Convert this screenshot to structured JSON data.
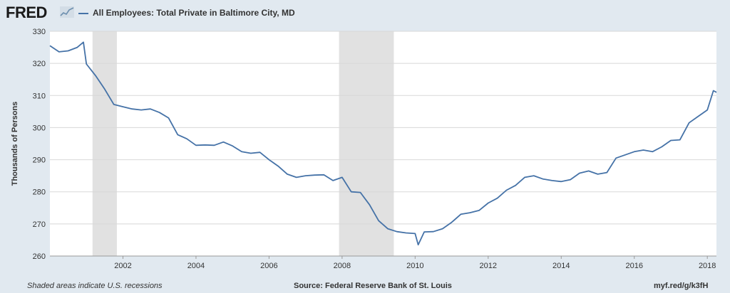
{
  "header": {
    "logo": "FRED",
    "logo_icon": "line-chart-icon",
    "series_title": "All Employees: Total Private in Baltimore City, MD"
  },
  "footer": {
    "note": "Shaded areas indicate U.S. recessions",
    "source": "Source: Federal Reserve Bank of St. Louis",
    "link": "myf.red/g/k3fH"
  },
  "colors": {
    "line": "#4572a7",
    "recession": "#e1e1e1",
    "background": "#e1e9f0",
    "plot": "#ffffff"
  },
  "chart_data": {
    "type": "line",
    "title": "All Employees: Total Private in Baltimore City, MD",
    "xlabel": "",
    "ylabel": "Thousands of Persons",
    "ylim": [
      260,
      330
    ],
    "xlim": [
      "2000-01",
      "2018-04"
    ],
    "yticks": [
      260,
      270,
      280,
      290,
      300,
      310,
      320,
      330
    ],
    "xticks": [
      "2002",
      "2004",
      "2006",
      "2008",
      "2010",
      "2012",
      "2014",
      "2016",
      "2018"
    ],
    "grid": "horizontal",
    "recessions": [
      [
        "2001-03",
        "2001-11"
      ],
      [
        "2007-12",
        "2009-06"
      ]
    ],
    "series": [
      {
        "x": [
          "2000-01",
          "2000-04",
          "2000-07",
          "2000-10",
          "2000-12",
          "2001-01",
          "2001-04",
          "2001-07",
          "2001-10",
          "2002-01",
          "2002-04",
          "2002-07",
          "2002-10",
          "2003-01",
          "2003-04",
          "2003-07",
          "2003-10",
          "2004-01",
          "2004-04",
          "2004-07",
          "2004-10",
          "2005-01",
          "2005-04",
          "2005-07",
          "2005-10",
          "2006-01",
          "2006-04",
          "2006-07",
          "2006-10",
          "2007-01",
          "2007-04",
          "2007-07",
          "2007-10",
          "2008-01",
          "2008-04",
          "2008-07",
          "2008-10",
          "2009-01",
          "2009-04",
          "2009-07",
          "2009-10",
          "2010-01",
          "2010-02",
          "2010-04",
          "2010-07",
          "2010-10",
          "2011-01",
          "2011-04",
          "2011-07",
          "2011-10",
          "2012-01",
          "2012-04",
          "2012-07",
          "2012-10",
          "2013-01",
          "2013-04",
          "2013-07",
          "2013-10",
          "2014-01",
          "2014-04",
          "2014-07",
          "2014-10",
          "2015-01",
          "2015-04",
          "2015-07",
          "2015-10",
          "2016-01",
          "2016-04",
          "2016-07",
          "2016-10",
          "2017-01",
          "2017-04",
          "2017-07",
          "2017-10",
          "2018-01",
          "2018-03",
          "2018-04"
        ],
        "values": [
          325.5,
          323.6,
          323.9,
          325.0,
          326.6,
          319.8,
          316.2,
          312.0,
          307.2,
          306.5,
          305.8,
          305.5,
          305.8,
          304.7,
          303.0,
          297.8,
          296.5,
          294.5,
          294.6,
          294.5,
          295.5,
          294.3,
          292.5,
          292.0,
          292.3,
          290.0,
          288.0,
          285.5,
          284.5,
          285.0,
          285.2,
          285.3,
          283.5,
          284.5,
          280.0,
          279.8,
          276.0,
          271.0,
          268.5,
          267.6,
          267.2,
          267.0,
          263.5,
          267.5,
          267.6,
          268.5,
          270.5,
          273.0,
          273.5,
          274.2,
          276.5,
          278.0,
          280.5,
          282.0,
          284.5,
          285.0,
          284.0,
          283.5,
          283.2,
          283.8,
          285.8,
          286.5,
          285.5,
          286.0,
          290.5,
          291.5,
          292.5,
          293.0,
          292.5,
          294.0,
          296.0,
          296.2,
          301.5,
          303.5,
          305.5,
          311.5,
          311.0
        ]
      }
    ]
  }
}
